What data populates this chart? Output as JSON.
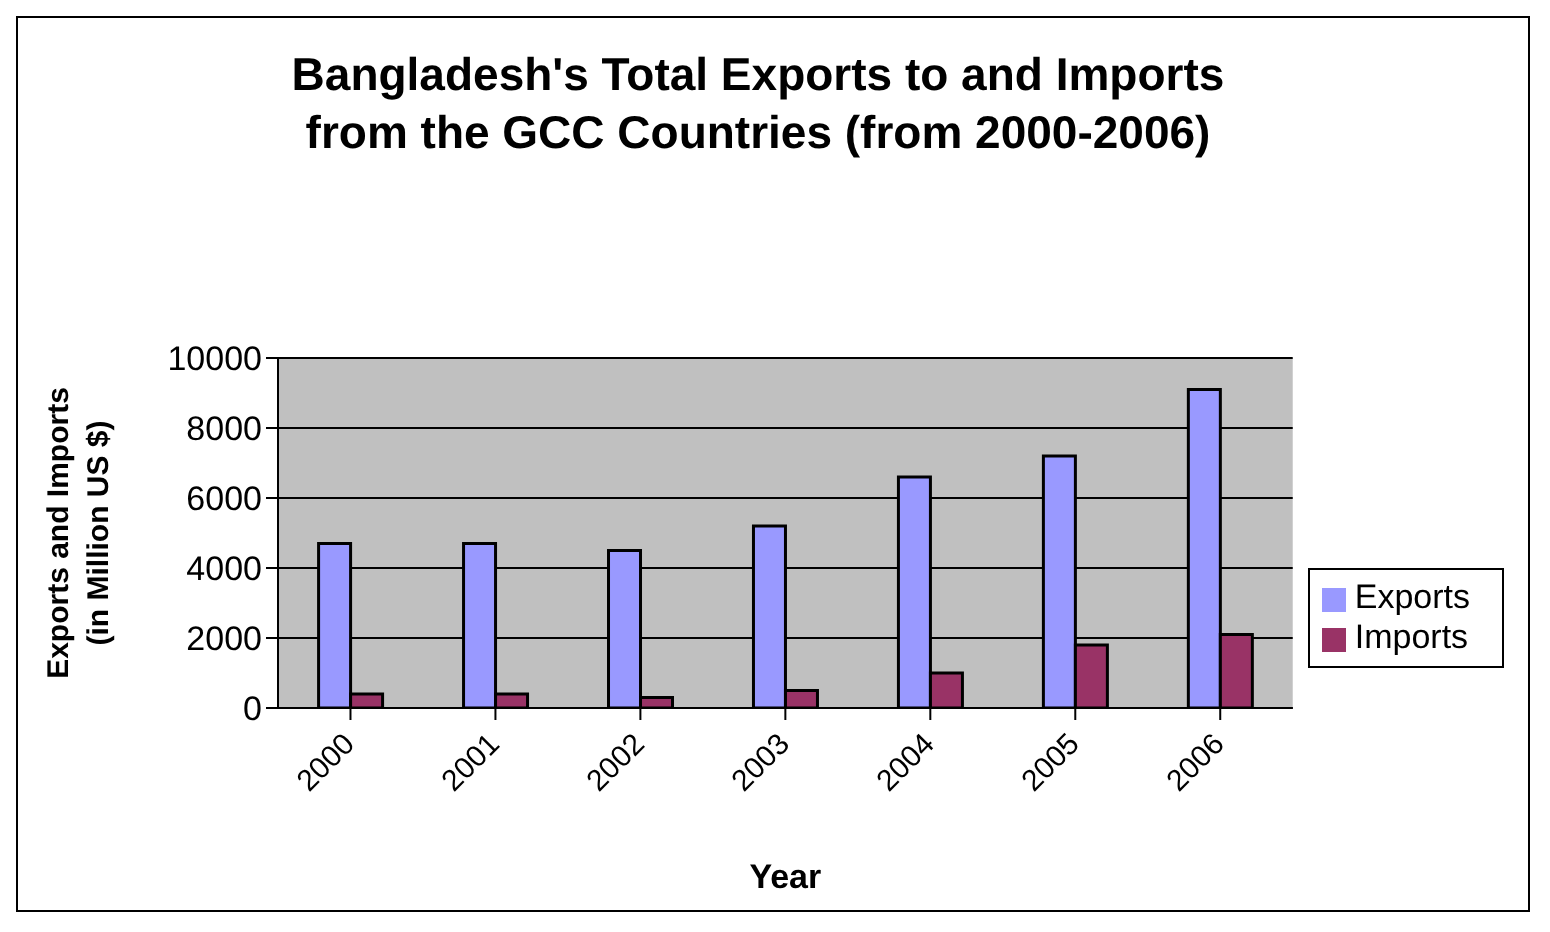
{
  "chart_data": {
    "type": "bar",
    "title": "Bangladesh's Total Exports to and Imports from the GCC Countries (from 2000-2006)",
    "xlabel": "Year",
    "ylabel": "Exports and Imports (in Million US $)",
    "categories": [
      "2000",
      "2001",
      "2002",
      "2003",
      "2004",
      "2005",
      "2006"
    ],
    "series": [
      {
        "name": "Exports",
        "color": "#9999ff",
        "values": [
          4700,
          4700,
          4500,
          5200,
          6600,
          7200,
          9100
        ]
      },
      {
        "name": "Imports",
        "color": "#993366",
        "values": [
          400,
          400,
          300,
          500,
          1000,
          1800,
          2100
        ]
      }
    ],
    "ylim": [
      0,
      10000
    ],
    "yticks": [
      0,
      2000,
      4000,
      6000,
      8000,
      10000
    ],
    "grid": "y",
    "legend": "right"
  }
}
